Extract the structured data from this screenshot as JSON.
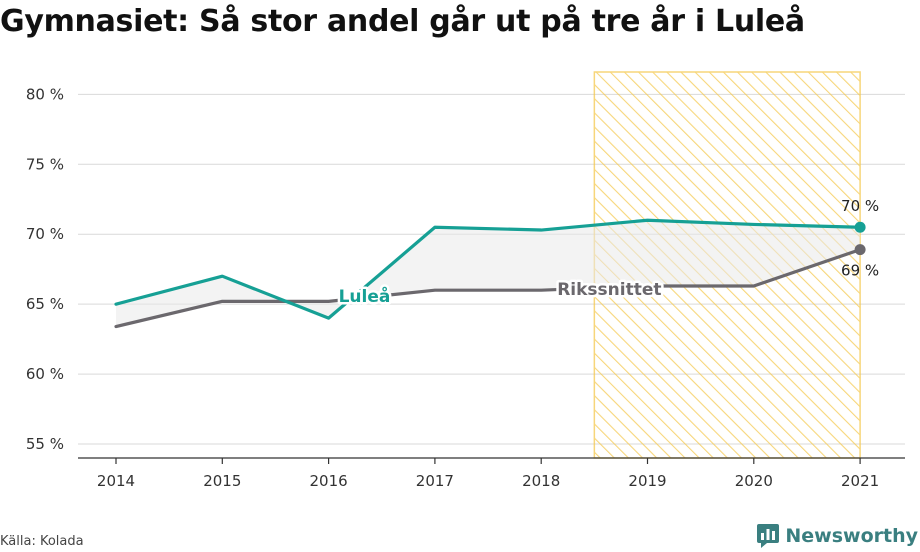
{
  "title": "Gymnasiet: Så stor andel går ut på tre år i Luleå",
  "source": "Källa: Kolada",
  "brand": "Newsworthy",
  "chart_data": {
    "type": "line",
    "x": [
      "2014",
      "2015",
      "2016",
      "2017",
      "2018",
      "2019",
      "2020",
      "2021"
    ],
    "y_ticks": [
      "55 %",
      "60 %",
      "65 %",
      "70 %",
      "75 %",
      "80 %"
    ],
    "ylim": [
      54,
      81.6
    ],
    "series": [
      {
        "name": "Luleå",
        "color": "#16a095",
        "values": [
          65.0,
          67.0,
          64.0,
          70.5,
          70.3,
          71.0,
          70.7,
          70.5
        ],
        "end_label": "70 %"
      },
      {
        "name": "Rikssnittet",
        "color": "#6b686d",
        "values": [
          63.4,
          65.2,
          65.2,
          66.0,
          66.0,
          66.3,
          66.3,
          68.9
        ],
        "end_label": "69 %"
      }
    ],
    "highlight_range": [
      "2018.5",
      "2021"
    ],
    "highlight_color": "#f5c94e",
    "grid": true
  }
}
